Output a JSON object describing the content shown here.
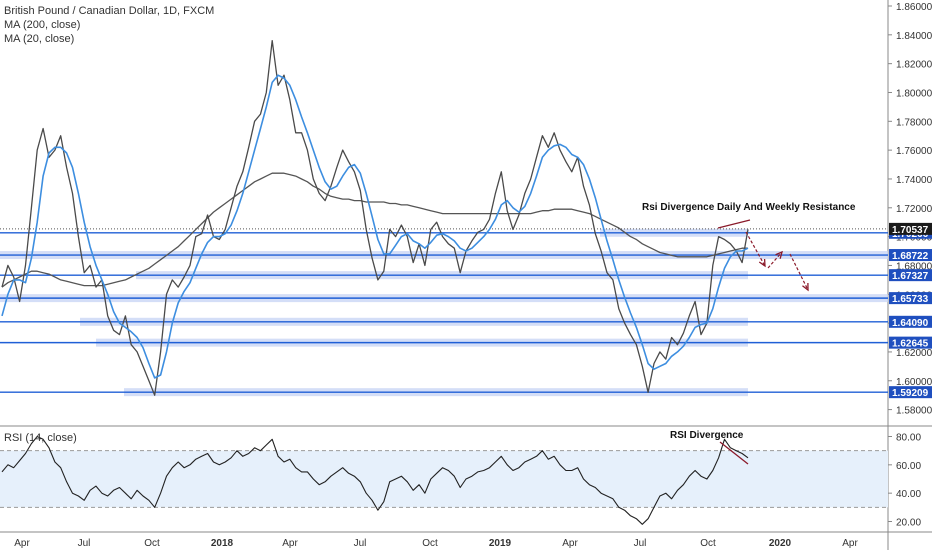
{
  "legend": {
    "title": "British Pound / Canadian Dollar, 1D, FXCM",
    "ma200": "MA (200, close)",
    "ma20": "MA (20, close)",
    "rsi": "RSI (14, close)"
  },
  "annotations": {
    "main": "Rsi Divergence Daily And Weekly Resistance",
    "rsi": "RSI Divergence"
  },
  "colors": {
    "price": "#4a4a4a",
    "ma20": "#3d8ee0",
    "ma200": "#555555",
    "level_line": "#1f5fd6",
    "zone": "#c9d6f5",
    "label_bg": "#1f4fbf",
    "current_label_bg": "#1a1a1a",
    "rsi_band": "#e6f0fb",
    "arrow": "#8b1a2a"
  },
  "chart_data": [
    {
      "type": "line",
      "title": "British Pound / Canadian Dollar, 1D, FXCM",
      "x_tick_labels": [
        "Apr",
        "Jul",
        "Oct",
        "2018",
        "Apr",
        "Jul",
        "Oct",
        "2019",
        "Apr",
        "Jul",
        "Oct",
        "2020",
        "Apr"
      ],
      "y_tick_labels": [
        "1.58000",
        "1.60000",
        "1.62000",
        "1.64000",
        "1.66000",
        "1.68000",
        "1.70000",
        "1.72000",
        "1.74000",
        "1.76000",
        "1.78000",
        "1.80000",
        "1.82000",
        "1.84000",
        "1.86000"
      ],
      "ylim": [
        1.57,
        1.86
      ],
      "current_price": 1.70537,
      "price_levels": [
        1.70266,
        1.68722,
        1.67327,
        1.65733,
        1.6409,
        1.62645,
        1.59209
      ],
      "level_labels": [
        "1.70266",
        "1.68722",
        "1.67327",
        "1.65733",
        "1.64090",
        "1.62645",
        "1.59209"
      ],
      "current_label": "1.70537",
      "series": [
        {
          "name": "Price",
          "values": [
            1.665,
            1.68,
            1.672,
            1.655,
            1.68,
            1.72,
            1.76,
            1.775,
            1.755,
            1.76,
            1.77,
            1.748,
            1.73,
            1.7,
            1.675,
            1.68,
            1.665,
            1.67,
            1.645,
            1.635,
            1.632,
            1.645,
            1.625,
            1.62,
            1.61,
            1.6,
            1.59,
            1.62,
            1.66,
            1.67,
            1.665,
            1.672,
            1.68,
            1.7,
            1.702,
            1.715,
            1.7,
            1.698,
            1.705,
            1.72,
            1.735,
            1.745,
            1.762,
            1.78,
            1.785,
            1.8,
            1.836,
            1.805,
            1.812,
            1.795,
            1.772,
            1.772,
            1.76,
            1.74,
            1.73,
            1.725,
            1.735,
            1.748,
            1.76,
            1.752,
            1.745,
            1.732,
            1.705,
            1.685,
            1.67,
            1.676,
            1.705,
            1.7,
            1.708,
            1.7,
            1.682,
            1.695,
            1.68,
            1.705,
            1.71,
            1.7,
            1.695,
            1.692,
            1.675,
            1.69,
            1.697,
            1.703,
            1.705,
            1.712,
            1.73,
            1.745,
            1.718,
            1.705,
            1.715,
            1.73,
            1.74,
            1.755,
            1.77,
            1.762,
            1.772,
            1.76,
            1.752,
            1.745,
            1.755,
            1.735,
            1.722,
            1.702,
            1.69,
            1.675,
            1.67,
            1.65,
            1.64,
            1.632,
            1.625,
            1.61,
            1.592,
            1.612,
            1.62,
            1.615,
            1.63,
            1.625,
            1.633,
            1.645,
            1.655,
            1.632,
            1.64,
            1.68,
            1.7,
            1.698,
            1.695,
            1.69,
            1.682,
            1.705
          ]
        },
        {
          "name": "MA (20, close)",
          "values": [
            1.645,
            1.66,
            1.67,
            1.67,
            1.668,
            1.685,
            1.71,
            1.742,
            1.758,
            1.762,
            1.762,
            1.758,
            1.748,
            1.73,
            1.71,
            1.693,
            1.68,
            1.67,
            1.66,
            1.648,
            1.64,
            1.637,
            1.634,
            1.63,
            1.623,
            1.612,
            1.602,
            1.604,
            1.62,
            1.64,
            1.654,
            1.662,
            1.668,
            1.678,
            1.688,
            1.696,
            1.7,
            1.7,
            1.702,
            1.708,
            1.718,
            1.73,
            1.745,
            1.76,
            1.775,
            1.79,
            1.807,
            1.812,
            1.81,
            1.805,
            1.795,
            1.783,
            1.772,
            1.76,
            1.748,
            1.738,
            1.733,
            1.735,
            1.742,
            1.748,
            1.75,
            1.744,
            1.73,
            1.714,
            1.698,
            1.688,
            1.688,
            1.694,
            1.7,
            1.702,
            1.697,
            1.695,
            1.692,
            1.696,
            1.701,
            1.702,
            1.7,
            1.697,
            1.692,
            1.69,
            1.692,
            1.696,
            1.7,
            1.705,
            1.712,
            1.722,
            1.725,
            1.72,
            1.717,
            1.721,
            1.73,
            1.742,
            1.755,
            1.76,
            1.763,
            1.764,
            1.762,
            1.757,
            1.755,
            1.75,
            1.74,
            1.727,
            1.712,
            1.697,
            1.684,
            1.67,
            1.658,
            1.647,
            1.637,
            1.625,
            1.612,
            1.608,
            1.61,
            1.612,
            1.617,
            1.62,
            1.624,
            1.63,
            1.637,
            1.639,
            1.64,
            1.65,
            1.665,
            1.678,
            1.686,
            1.69,
            1.69,
            1.692
          ]
        },
        {
          "name": "MA (200, close)",
          "values": [
            1.665,
            1.668,
            1.67,
            1.672,
            1.674,
            1.676,
            1.676,
            1.675,
            1.674,
            1.672,
            1.67,
            1.669,
            1.668,
            1.667,
            1.666,
            1.666,
            1.666,
            1.666,
            1.667,
            1.668,
            1.669,
            1.67,
            1.672,
            1.674,
            1.676,
            1.678,
            1.681,
            1.684,
            1.687,
            1.69,
            1.693,
            1.697,
            1.701,
            1.705,
            1.709,
            1.713,
            1.717,
            1.72,
            1.723,
            1.726,
            1.729,
            1.732,
            1.735,
            1.738,
            1.74,
            1.742,
            1.744,
            1.744,
            1.744,
            1.743,
            1.742,
            1.74,
            1.738,
            1.735,
            1.733,
            1.73,
            1.728,
            1.727,
            1.726,
            1.726,
            1.725,
            1.725,
            1.724,
            1.724,
            1.724,
            1.724,
            1.723,
            1.723,
            1.722,
            1.722,
            1.721,
            1.72,
            1.719,
            1.718,
            1.717,
            1.716,
            1.716,
            1.716,
            1.716,
            1.716,
            1.716,
            1.716,
            1.716,
            1.716,
            1.716,
            1.716,
            1.716,
            1.716,
            1.716,
            1.716,
            1.716,
            1.717,
            1.718,
            1.718,
            1.719,
            1.719,
            1.719,
            1.719,
            1.718,
            1.717,
            1.716,
            1.714,
            1.712,
            1.71,
            1.708,
            1.706,
            1.703,
            1.7,
            1.698,
            1.695,
            1.693,
            1.691,
            1.689,
            1.688,
            1.687,
            1.686,
            1.686,
            1.686,
            1.686,
            1.686,
            1.686,
            1.687,
            1.688,
            1.689,
            1.69,
            1.691,
            1.692,
            1.692
          ]
        }
      ]
    },
    {
      "type": "line",
      "title": "RSI (14, close)",
      "y_tick_labels": [
        "20.00",
        "40.00",
        "60.00",
        "80.00"
      ],
      "ylim": [
        14,
        86
      ],
      "band": [
        30,
        70
      ],
      "series": [
        {
          "name": "RSI (14, close)",
          "values": [
            55,
            60,
            58,
            63,
            68,
            75,
            80,
            78,
            72,
            62,
            58,
            48,
            40,
            38,
            35,
            42,
            45,
            40,
            38,
            42,
            44,
            40,
            36,
            42,
            38,
            35,
            30,
            40,
            52,
            58,
            62,
            58,
            60,
            64,
            66,
            68,
            62,
            60,
            62,
            65,
            70,
            66,
            68,
            72,
            70,
            74,
            78,
            66,
            62,
            64,
            58,
            55,
            55,
            50,
            46,
            48,
            52,
            55,
            58,
            54,
            52,
            48,
            40,
            35,
            28,
            34,
            48,
            50,
            52,
            48,
            42,
            46,
            40,
            50,
            54,
            58,
            56,
            52,
            44,
            50,
            52,
            55,
            56,
            58,
            62,
            66,
            60,
            56,
            58,
            62,
            64,
            66,
            70,
            64,
            66,
            60,
            56,
            56,
            58,
            50,
            46,
            44,
            40,
            38,
            36,
            30,
            28,
            24,
            22,
            18,
            22,
            30,
            38,
            40,
            36,
            42,
            46,
            52,
            56,
            52,
            50,
            56,
            65,
            78,
            72,
            70,
            68,
            65
          ]
        }
      ]
    }
  ]
}
